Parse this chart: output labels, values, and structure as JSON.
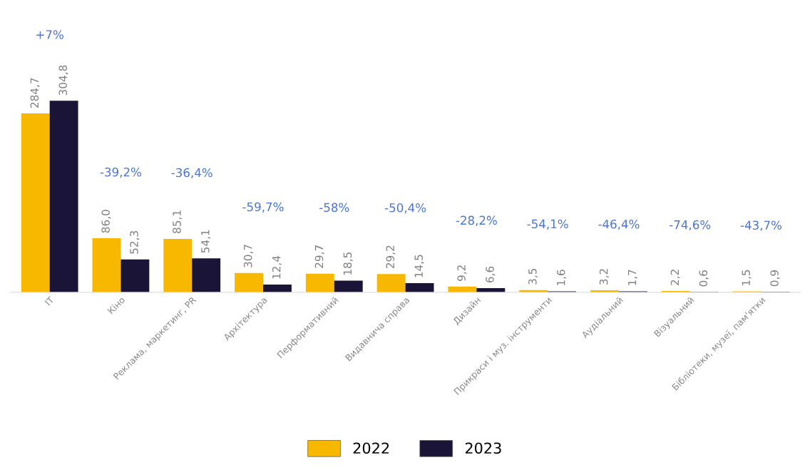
{
  "chart_data": {
    "type": "bar",
    "categories": [
      "IT",
      "Кіно",
      "Реклама, маркетинг, PR",
      "Архітектура",
      "Перформативний",
      "Видавнича справа",
      "Дизайн",
      "Прикраси і муз. інструменти",
      "Аудіальний",
      "Візуальний",
      "Бібліотеки, музеї, пам'ятки"
    ],
    "series": [
      {
        "name": "2022",
        "color": "#f9b800",
        "values": [
          284.7,
          86.0,
          85.1,
          30.7,
          29.7,
          29.2,
          9.2,
          3.5,
          3.2,
          2.2,
          1.5
        ],
        "value_labels": [
          "284,7",
          "86,0",
          "85,1",
          "30,7",
          "29,7",
          "29,2",
          "9,2",
          "3,5",
          "3,2",
          "2,2",
          "1,5"
        ]
      },
      {
        "name": "2023",
        "color": "#1a1536",
        "values": [
          304.8,
          52.3,
          54.1,
          12.4,
          18.5,
          14.5,
          6.6,
          1.6,
          1.7,
          0.6,
          0.9
        ],
        "value_labels": [
          "304,8",
          "52,3",
          "54,1",
          "12,4",
          "18,5",
          "14,5",
          "6,6",
          "1,6",
          "1,7",
          "0,6",
          "0,9"
        ]
      }
    ],
    "annotations": [
      "+7%",
      "-39,2%",
      "-36,4%",
      "-59,7%",
      "-58%",
      "-50,4%",
      "-28,2%",
      "-54,1%",
      "-46,4%",
      "-74,6%",
      "-43,7%"
    ],
    "legend": "bottom",
    "grid": false,
    "tick_labels": "x"
  }
}
